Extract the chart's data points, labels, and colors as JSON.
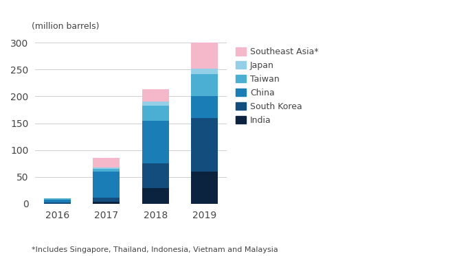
{
  "years": [
    "2016",
    "2017",
    "2018",
    "2019"
  ],
  "series": {
    "India": [
      0,
      4,
      30,
      60
    ],
    "South Korea": [
      2,
      8,
      45,
      100
    ],
    "China": [
      6,
      48,
      80,
      40
    ],
    "Taiwan": [
      2,
      5,
      28,
      42
    ],
    "Japan": [
      0,
      3,
      8,
      10
    ],
    "Southeast Asia": [
      0,
      17,
      22,
      48
    ]
  },
  "colors": {
    "India": "#0c2340",
    "South Korea": "#134d7e",
    "China": "#1b7db5",
    "Taiwan": "#4bafd4",
    "Japan": "#93d0e8",
    "Southeast Asia": "#f5b8ca"
  },
  "ylabel": "(million barrels)",
  "ylim": [
    0,
    310
  ],
  "yticks": [
    0,
    50,
    100,
    150,
    200,
    250,
    300
  ],
  "legend_labels": [
    "Southeast Asia*",
    "Japan",
    "Taiwan",
    "China",
    "South Korea",
    "India"
  ],
  "footnote1": "*Includes Singapore, Thailand, Indonesia, Vietnam and Malaysia",
  "background_color": "#ffffff",
  "grid_color": "#d0d0d0",
  "bar_width": 0.55
}
